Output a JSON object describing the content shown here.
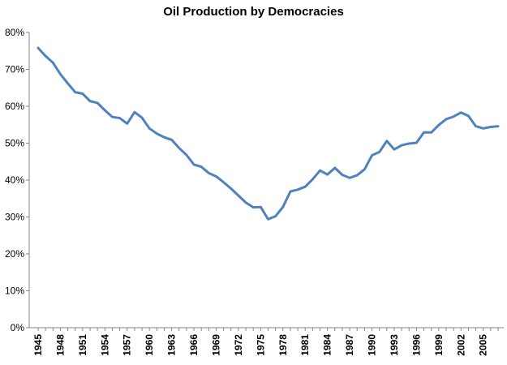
{
  "chart_data": {
    "type": "line",
    "title": "Oil Production by Democracies",
    "xlabel": "",
    "ylabel": "",
    "ylim": [
      0,
      80
    ],
    "y_ticks": [
      "0%",
      "10%",
      "20%",
      "30%",
      "40%",
      "50%",
      "60%",
      "70%",
      "80%"
    ],
    "x_ticks": [
      "1945",
      "1948",
      "1951",
      "1954",
      "1957",
      "1960",
      "1963",
      "1966",
      "1969",
      "1972",
      "1975",
      "1978",
      "1981",
      "1984",
      "1987",
      "1990",
      "1993",
      "1996",
      "1999",
      "2002",
      "2005"
    ],
    "xlim": [
      1945,
      2007
    ],
    "grid": false,
    "legend": "none",
    "line_color": "#4F81BD",
    "series": [
      {
        "x": [
          1945,
          1946,
          1947,
          1948,
          1949,
          1950,
          1951,
          1952,
          1953,
          1954,
          1955,
          1956,
          1957,
          1958,
          1959,
          1960,
          1961,
          1962,
          1963,
          1964,
          1965,
          1966,
          1967,
          1968,
          1969,
          1970,
          1971,
          1972,
          1973,
          1974,
          1975,
          1976,
          1977,
          1978,
          1979,
          1980,
          1981,
          1982,
          1983,
          1984,
          1985,
          1986,
          1987,
          1988,
          1989,
          1990,
          1991,
          1992,
          1993,
          1994,
          1995,
          1996,
          1997,
          1998,
          1999,
          2000,
          2001,
          2002,
          2003,
          2004,
          2005,
          2006,
          2007
        ],
        "values": [
          75.8,
          73.6,
          71.8,
          68.7,
          66.2,
          63.8,
          63.4,
          61.4,
          60.9,
          58.9,
          57.1,
          56.8,
          55.3,
          58.4,
          56.9,
          54.0,
          52.6,
          51.6,
          50.9,
          48.7,
          46.8,
          44.2,
          43.6,
          41.9,
          41.0,
          39.4,
          37.7,
          35.8,
          33.9,
          32.6,
          32.7,
          29.4,
          30.2,
          32.7,
          36.9,
          37.4,
          38.2,
          40.2,
          42.6,
          41.5,
          43.3,
          41.4,
          40.6,
          41.3,
          42.9,
          46.7,
          47.6,
          50.6,
          48.3,
          49.4,
          49.9,
          50.1,
          52.9,
          52.9,
          54.9,
          56.5,
          57.2,
          58.3,
          57.4,
          54.6,
          54.0,
          54.4,
          54.6
        ]
      }
    ]
  }
}
